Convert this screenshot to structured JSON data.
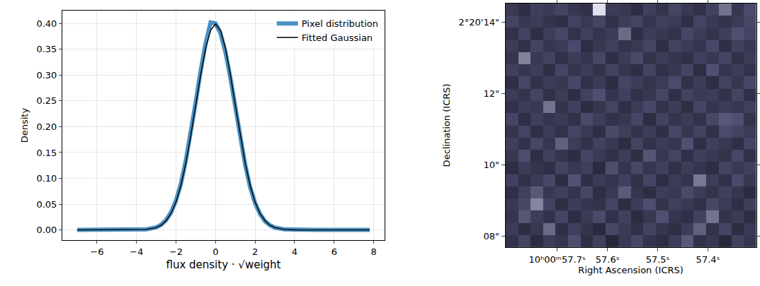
{
  "chart_data": [
    {
      "type": "line",
      "x_label": "flux density · √weight",
      "y_label": "Density",
      "x": [
        -7,
        -6,
        -5,
        -4,
        -3.5,
        -3,
        -2.75,
        -2.5,
        -2.25,
        -2,
        -1.75,
        -1.5,
        -1.25,
        -1,
        -0.75,
        -0.5,
        -0.25,
        0,
        0.25,
        0.5,
        0.75,
        1,
        1.25,
        1.5,
        1.75,
        2,
        2.25,
        2.5,
        2.75,
        3,
        3.5,
        4,
        5,
        6,
        7,
        7.8
      ],
      "series": [
        {
          "name": "Pixel distribution",
          "color": "#4a90c2",
          "values": [
            0,
            0,
            0,
            0.0002,
            0.0012,
            0.005,
            0.01,
            0.019,
            0.034,
            0.057,
            0.09,
            0.135,
            0.189,
            0.248,
            0.309,
            0.362,
            0.402,
            0.4,
            0.381,
            0.345,
            0.295,
            0.236,
            0.178,
            0.126,
            0.083,
            0.052,
            0.031,
            0.017,
            0.009,
            0.0045,
            0.001,
            0.0002,
            0,
            0,
            0,
            0
          ]
        },
        {
          "name": "Fitted Gaussian",
          "color": "#000000",
          "values": [
            0,
            0,
            0,
            0.0001,
            0.0009,
            0.0044,
            0.009,
            0.018,
            0.032,
            0.054,
            0.086,
            0.13,
            0.183,
            0.242,
            0.301,
            0.352,
            0.387,
            0.399,
            0.387,
            0.352,
            0.301,
            0.242,
            0.183,
            0.13,
            0.086,
            0.054,
            0.032,
            0.018,
            0.009,
            0.0044,
            0.0009,
            0.0001,
            0,
            0,
            0,
            0
          ]
        }
      ],
      "xlim": [
        -7.75,
        8.55
      ],
      "ylim": [
        -0.02,
        0.425
      ],
      "xticks": [
        {
          "value": -6,
          "label": "−6"
        },
        {
          "value": -4,
          "label": "−4"
        },
        {
          "value": -2,
          "label": "−2"
        },
        0,
        2,
        4,
        6,
        8
      ],
      "yticks": [
        {
          "value": 0,
          "label": "0.00"
        },
        {
          "value": 0.05,
          "label": "0.05"
        },
        {
          "value": 0.1,
          "label": "0.10"
        },
        {
          "value": 0.15,
          "label": "0.15"
        },
        {
          "value": 0.2,
          "label": "0.20"
        },
        {
          "value": 0.25,
          "label": "0.25"
        },
        {
          "value": 0.3,
          "label": "0.30"
        },
        {
          "value": 0.35,
          "label": "0.35"
        },
        {
          "value": 0.4,
          "label": "0.40"
        }
      ],
      "grid": true,
      "legend": "upper right"
    },
    {
      "type": "heatmap",
      "x_label": "Right Ascension (ICRS)",
      "y_label": "Declination (ICRS)",
      "x": [
        57.79,
        57.765,
        57.741,
        57.716,
        57.691,
        57.666,
        57.641,
        57.616,
        57.591,
        57.566,
        57.541,
        57.516,
        57.491,
        57.466,
        57.441,
        57.416,
        57.391,
        57.366,
        57.341,
        57.316
      ],
      "y": [
        7.871,
        8.212,
        8.554,
        8.895,
        9.237,
        9.578,
        9.92,
        10.261,
        10.603,
        10.944,
        11.286,
        11.627,
        11.969,
        12.31,
        12.652,
        12.993,
        13.335,
        13.676,
        14.018,
        14.359
      ],
      "z": [
        [
          0.22,
          0.35,
          0.18,
          0.3,
          0.26,
          0.41,
          0.2,
          0.33,
          0.15,
          0.28,
          0.37,
          0.24,
          0.19,
          0.31,
          0.45,
          0.22,
          0.27,
          0.16,
          0.34,
          0.25
        ],
        [
          0.3,
          0.19,
          0.27,
          0.52,
          0.21,
          0.33,
          0.24,
          0.17,
          0.38,
          0.29,
          0.22,
          0.35,
          0.26,
          0.2,
          0.31,
          0.48,
          0.23,
          0.36,
          0.19,
          0.28
        ],
        [
          0.25,
          0.44,
          0.31,
          0.23,
          0.36,
          0.19,
          0.29,
          0.4,
          0.22,
          0.33,
          0.18,
          0.27,
          0.42,
          0.25,
          0.21,
          0.34,
          0.55,
          0.24,
          0.3,
          0.2
        ],
        [
          0.28,
          0.38,
          0.62,
          0.34,
          0.2,
          0.31,
          0.26,
          0.23,
          0.35,
          0.19,
          0.3,
          0.41,
          0.24,
          0.33,
          0.28,
          0.22,
          0.37,
          0.29,
          0.21,
          0.32
        ],
        [
          0.21,
          0.33,
          0.45,
          0.27,
          0.32,
          0.24,
          0.37,
          0.2,
          0.28,
          0.46,
          0.25,
          0.19,
          0.31,
          0.27,
          0.39,
          0.3,
          0.24,
          0.33,
          0.26,
          0.18
        ],
        [
          0.34,
          0.22,
          0.29,
          0.38,
          0.19,
          0.43,
          0.21,
          0.3,
          0.25,
          0.33,
          0.22,
          0.36,
          0.2,
          0.29,
          0.24,
          0.57,
          0.31,
          0.22,
          0.4,
          0.27
        ],
        [
          0.19,
          0.3,
          0.24,
          0.21,
          0.35,
          0.27,
          0.32,
          0.18,
          0.41,
          0.24,
          0.37,
          0.26,
          0.33,
          0.22,
          0.3,
          0.25,
          0.19,
          0.35,
          0.28,
          0.33
        ],
        [
          0.27,
          0.41,
          0.2,
          0.33,
          0.25,
          0.19,
          0.36,
          0.29,
          0.22,
          0.31,
          0.2,
          0.44,
          0.27,
          0.35,
          0.21,
          0.32,
          0.28,
          0.24,
          0.37,
          0.22
        ],
        [
          0.32,
          0.23,
          0.37,
          0.26,
          0.48,
          0.31,
          0.22,
          0.34,
          0.27,
          0.19,
          0.35,
          0.23,
          0.3,
          0.25,
          0.42,
          0.2,
          0.33,
          0.27,
          0.21,
          0.36
        ],
        [
          0.24,
          0.35,
          0.21,
          0.3,
          0.23,
          0.36,
          0.28,
          0.2,
          0.39,
          0.32,
          0.24,
          0.31,
          0.21,
          0.38,
          0.26,
          0.34,
          0.22,
          0.4,
          0.35,
          0.29
        ],
        [
          0.36,
          0.2,
          0.32,
          0.25,
          0.29,
          0.22,
          0.4,
          0.31,
          0.23,
          0.27,
          0.36,
          0.19,
          0.34,
          0.24,
          0.3,
          0.23,
          0.37,
          0.45,
          0.42,
          0.24
        ],
        [
          0.22,
          0.31,
          0.27,
          0.55,
          0.24,
          0.33,
          0.19,
          0.26,
          0.35,
          0.21,
          0.29,
          0.38,
          0.23,
          0.31,
          0.2,
          0.36,
          0.25,
          0.3,
          0.27,
          0.33
        ],
        [
          0.29,
          0.24,
          0.36,
          0.22,
          0.31,
          0.2,
          0.34,
          0.42,
          0.25,
          0.33,
          0.22,
          0.27,
          0.36,
          0.21,
          0.34,
          0.28,
          0.31,
          0.23,
          0.35,
          0.21
        ],
        [
          0.2,
          0.37,
          0.23,
          0.3,
          0.27,
          0.38,
          0.22,
          0.29,
          0.19,
          0.36,
          0.31,
          0.24,
          0.29,
          0.4,
          0.23,
          0.31,
          0.2,
          0.34,
          0.26,
          0.38
        ],
        [
          0.33,
          0.26,
          0.31,
          0.21,
          0.36,
          0.25,
          0.3,
          0.23,
          0.34,
          0.26,
          0.2,
          0.35,
          0.22,
          0.27,
          0.36,
          0.19,
          0.42,
          0.25,
          0.31,
          0.23
        ],
        [
          0.25,
          0.6,
          0.28,
          0.34,
          0.22,
          0.31,
          0.26,
          0.37,
          0.21,
          0.3,
          0.39,
          0.23,
          0.31,
          0.25,
          0.22,
          0.33,
          0.27,
          0.36,
          0.22,
          0.3
        ],
        [
          0.31,
          0.22,
          0.35,
          0.26,
          0.29,
          0.4,
          0.2,
          0.27,
          0.33,
          0.24,
          0.28,
          0.36,
          0.2,
          0.34,
          0.29,
          0.25,
          0.38,
          0.21,
          0.33,
          0.27
        ],
        [
          0.23,
          0.34,
          0.2,
          0.31,
          0.37,
          0.23,
          0.33,
          0.25,
          0.29,
          0.52,
          0.21,
          0.3,
          0.27,
          0.23,
          0.37,
          0.3,
          0.24,
          0.32,
          0.42,
          0.35
        ],
        [
          0.36,
          0.27,
          0.3,
          0.24,
          0.21,
          0.34,
          0.28,
          0.36,
          0.22,
          0.31,
          0.35,
          0.25,
          0.33,
          0.29,
          0.21,
          0.35,
          0.28,
          0.24,
          0.3,
          0.38
        ],
        [
          0.28,
          0.21,
          0.33,
          0.29,
          0.35,
          0.26,
          0.22,
          0.95,
          0.3,
          0.27,
          0.2,
          0.33,
          0.24,
          0.36,
          0.28,
          0.22,
          0.34,
          0.55,
          0.26,
          0.4
        ]
      ],
      "zlim": [
        0,
        1
      ],
      "xlim": [
        57.803,
        57.304
      ],
      "ylim": [
        7.7,
        14.53
      ],
      "xticks": [
        {
          "value": 57.7,
          "label": "10ʰ00ᵐ57.7ˢ"
        },
        {
          "value": 57.6,
          "label": "57.6ˢ"
        },
        {
          "value": 57.5,
          "label": "57.5ˢ"
        },
        {
          "value": 57.4,
          "label": "57.4ˢ"
        }
      ],
      "yticks": [
        {
          "value": 8,
          "label": "08\""
        },
        {
          "value": 10,
          "label": "10\""
        },
        {
          "value": 12,
          "label": "12\""
        },
        {
          "value": 14,
          "label": "2°20'14\""
        }
      ],
      "grid": true
    }
  ]
}
